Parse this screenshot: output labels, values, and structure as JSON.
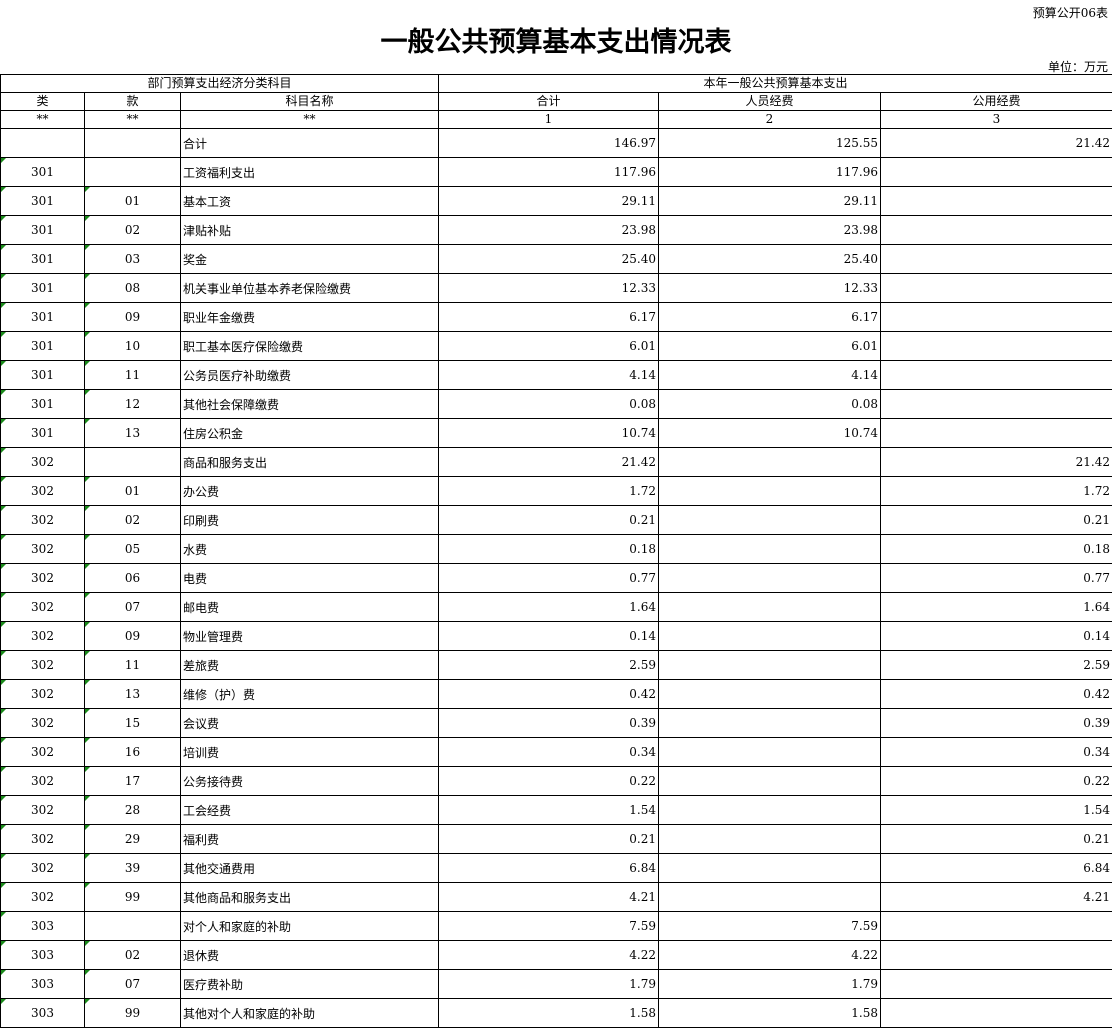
{
  "form_code": "预算公开06表",
  "title": "一般公共预算基本支出情况表",
  "unit": "单位：万元",
  "header": {
    "group_left": "部门预算支出经济分类科目",
    "group_right": "本年一般公共预算基本支出",
    "cols": [
      "类",
      "款",
      "科目名称",
      "合计",
      "人员经费",
      "公用经费"
    ],
    "index": [
      "**",
      "**",
      "**",
      "1",
      "2",
      "3"
    ]
  },
  "rows": [
    [
      "",
      "",
      "合计",
      "146.97",
      "125.55",
      "21.42"
    ],
    [
      "301",
      "",
      "工资福利支出",
      "117.96",
      "117.96",
      ""
    ],
    [
      "301",
      "01",
      "基本工资",
      "29.11",
      "29.11",
      ""
    ],
    [
      "301",
      "02",
      "津贴补贴",
      "23.98",
      "23.98",
      ""
    ],
    [
      "301",
      "03",
      "奖金",
      "25.40",
      "25.40",
      ""
    ],
    [
      "301",
      "08",
      "机关事业单位基本养老保险缴费",
      "12.33",
      "12.33",
      ""
    ],
    [
      "301",
      "09",
      "职业年金缴费",
      "6.17",
      "6.17",
      ""
    ],
    [
      "301",
      "10",
      "职工基本医疗保险缴费",
      "6.01",
      "6.01",
      ""
    ],
    [
      "301",
      "11",
      "公务员医疗补助缴费",
      "4.14",
      "4.14",
      ""
    ],
    [
      "301",
      "12",
      "其他社会保障缴费",
      "0.08",
      "0.08",
      ""
    ],
    [
      "301",
      "13",
      "住房公积金",
      "10.74",
      "10.74",
      ""
    ],
    [
      "302",
      "",
      "商品和服务支出",
      "21.42",
      "",
      "21.42"
    ],
    [
      "302",
      "01",
      "办公费",
      "1.72",
      "",
      "1.72"
    ],
    [
      "302",
      "02",
      "印刷费",
      "0.21",
      "",
      "0.21"
    ],
    [
      "302",
      "05",
      "水费",
      "0.18",
      "",
      "0.18"
    ],
    [
      "302",
      "06",
      "电费",
      "0.77",
      "",
      "0.77"
    ],
    [
      "302",
      "07",
      "邮电费",
      "1.64",
      "",
      "1.64"
    ],
    [
      "302",
      "09",
      "物业管理费",
      "0.14",
      "",
      "0.14"
    ],
    [
      "302",
      "11",
      "差旅费",
      "2.59",
      "",
      "2.59"
    ],
    [
      "302",
      "13",
      "维修（护）费",
      "0.42",
      "",
      "0.42"
    ],
    [
      "302",
      "15",
      "会议费",
      "0.39",
      "",
      "0.39"
    ],
    [
      "302",
      "16",
      "培训费",
      "0.34",
      "",
      "0.34"
    ],
    [
      "302",
      "17",
      "公务接待费",
      "0.22",
      "",
      "0.22"
    ],
    [
      "302",
      "28",
      "工会经费",
      "1.54",
      "",
      "1.54"
    ],
    [
      "302",
      "29",
      "福利费",
      "0.21",
      "",
      "0.21"
    ],
    [
      "302",
      "39",
      "其他交通费用",
      "6.84",
      "",
      "6.84"
    ],
    [
      "302",
      "99",
      "其他商品和服务支出",
      "4.21",
      "",
      "4.21"
    ],
    [
      "303",
      "",
      "对个人和家庭的补助",
      "7.59",
      "7.59",
      ""
    ],
    [
      "303",
      "02",
      "退休费",
      "4.22",
      "4.22",
      ""
    ],
    [
      "303",
      "07",
      "医疗费补助",
      "1.79",
      "1.79",
      ""
    ],
    [
      "303",
      "99",
      "其他对个人和家庭的补助",
      "1.58",
      "1.58",
      ""
    ]
  ]
}
